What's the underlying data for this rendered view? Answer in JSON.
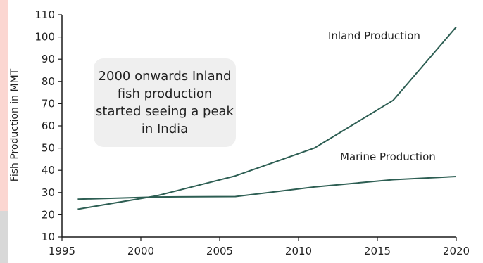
{
  "chart_data": {
    "type": "line",
    "title": "",
    "xlabel": "",
    "ylabel": "Fish Production in MMT",
    "xlim": [
      1995,
      2020
    ],
    "ylim": [
      10,
      110
    ],
    "x_ticks": [
      "1995",
      "2000",
      "2005",
      "2010",
      "2015",
      "2020"
    ],
    "y_ticks": [
      "10",
      "20",
      "30",
      "40",
      "50",
      "60",
      "70",
      "80",
      "90",
      "100",
      "110"
    ],
    "grid": false,
    "series": [
      {
        "name": "Inland Production",
        "x": [
          1996,
          2001,
          2006,
          2011,
          2016,
          2020
        ],
        "y": [
          22.5,
          28.5,
          37.5,
          50,
          71.5,
          104.5
        ]
      },
      {
        "name": "Marine Production",
        "x": [
          1996,
          2001,
          2006,
          2011,
          2016,
          2020
        ],
        "y": [
          27,
          28,
          28.2,
          32.5,
          35.8,
          37.2
        ]
      }
    ],
    "annotation": {
      "lines": [
        "2000 onwards Inland",
        "fish production",
        "started seeing a peak",
        "in India"
      ]
    }
  },
  "colors": {
    "line": "#2d5e53",
    "axis": "#1a1a1a",
    "annotation_bg": "#efefef",
    "left_stripe_top": "#f6a9a0",
    "left_stripe_bottom": "#c9c9c9"
  }
}
